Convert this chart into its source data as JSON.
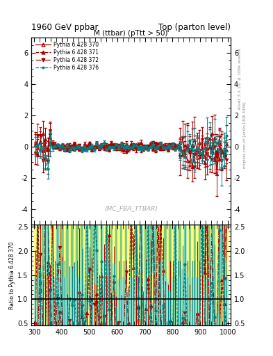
{
  "title_left": "1960 GeV ppbar",
  "title_right": "Top (parton level)",
  "plot_title": "M (ttbar) (pTtt > 50)",
  "ylabel_ratio": "Ratio to Pythia 6.428 370",
  "ylabel_right1": "Rivet 3.1.10; ≥ 100k events",
  "ylabel_right2": "mcplots.cern.ch [arXiv:1306.3436]",
  "watermark": "(MC_FBA_TTBAR)",
  "xlim": [
    290,
    1010
  ],
  "ylim_main": [
    -5,
    7
  ],
  "ylim_ratio": [
    0.45,
    2.55
  ],
  "xticks": [
    300,
    400,
    500,
    600,
    700,
    800,
    900,
    1000
  ],
  "yticks_main": [
    -4,
    -2,
    0,
    2,
    4,
    6
  ],
  "yticks_ratio": [
    0.5,
    1.0,
    1.5,
    2.0,
    2.5
  ],
  "series": [
    {
      "label": "Pythia 6.428 370",
      "color": "#aa0000",
      "linestyle": "-",
      "marker": "^",
      "markerfill": "none"
    },
    {
      "label": "Pythia 6.428 371",
      "color": "#aa0000",
      "linestyle": "--",
      "marker": "^",
      "markerfill": "full"
    },
    {
      "label": "Pythia 6.428 372",
      "color": "#aa0000",
      "linestyle": "-.",
      "marker": "v",
      "markerfill": "full"
    },
    {
      "label": "Pythia 6.428 376",
      "color": "#008080",
      "linestyle": "--",
      "marker": ".",
      "markerfill": "full"
    }
  ],
  "ratio_green": "#7ec87e",
  "ratio_yellow": "#ffff80",
  "ratio_cyan": "#80e0e0"
}
